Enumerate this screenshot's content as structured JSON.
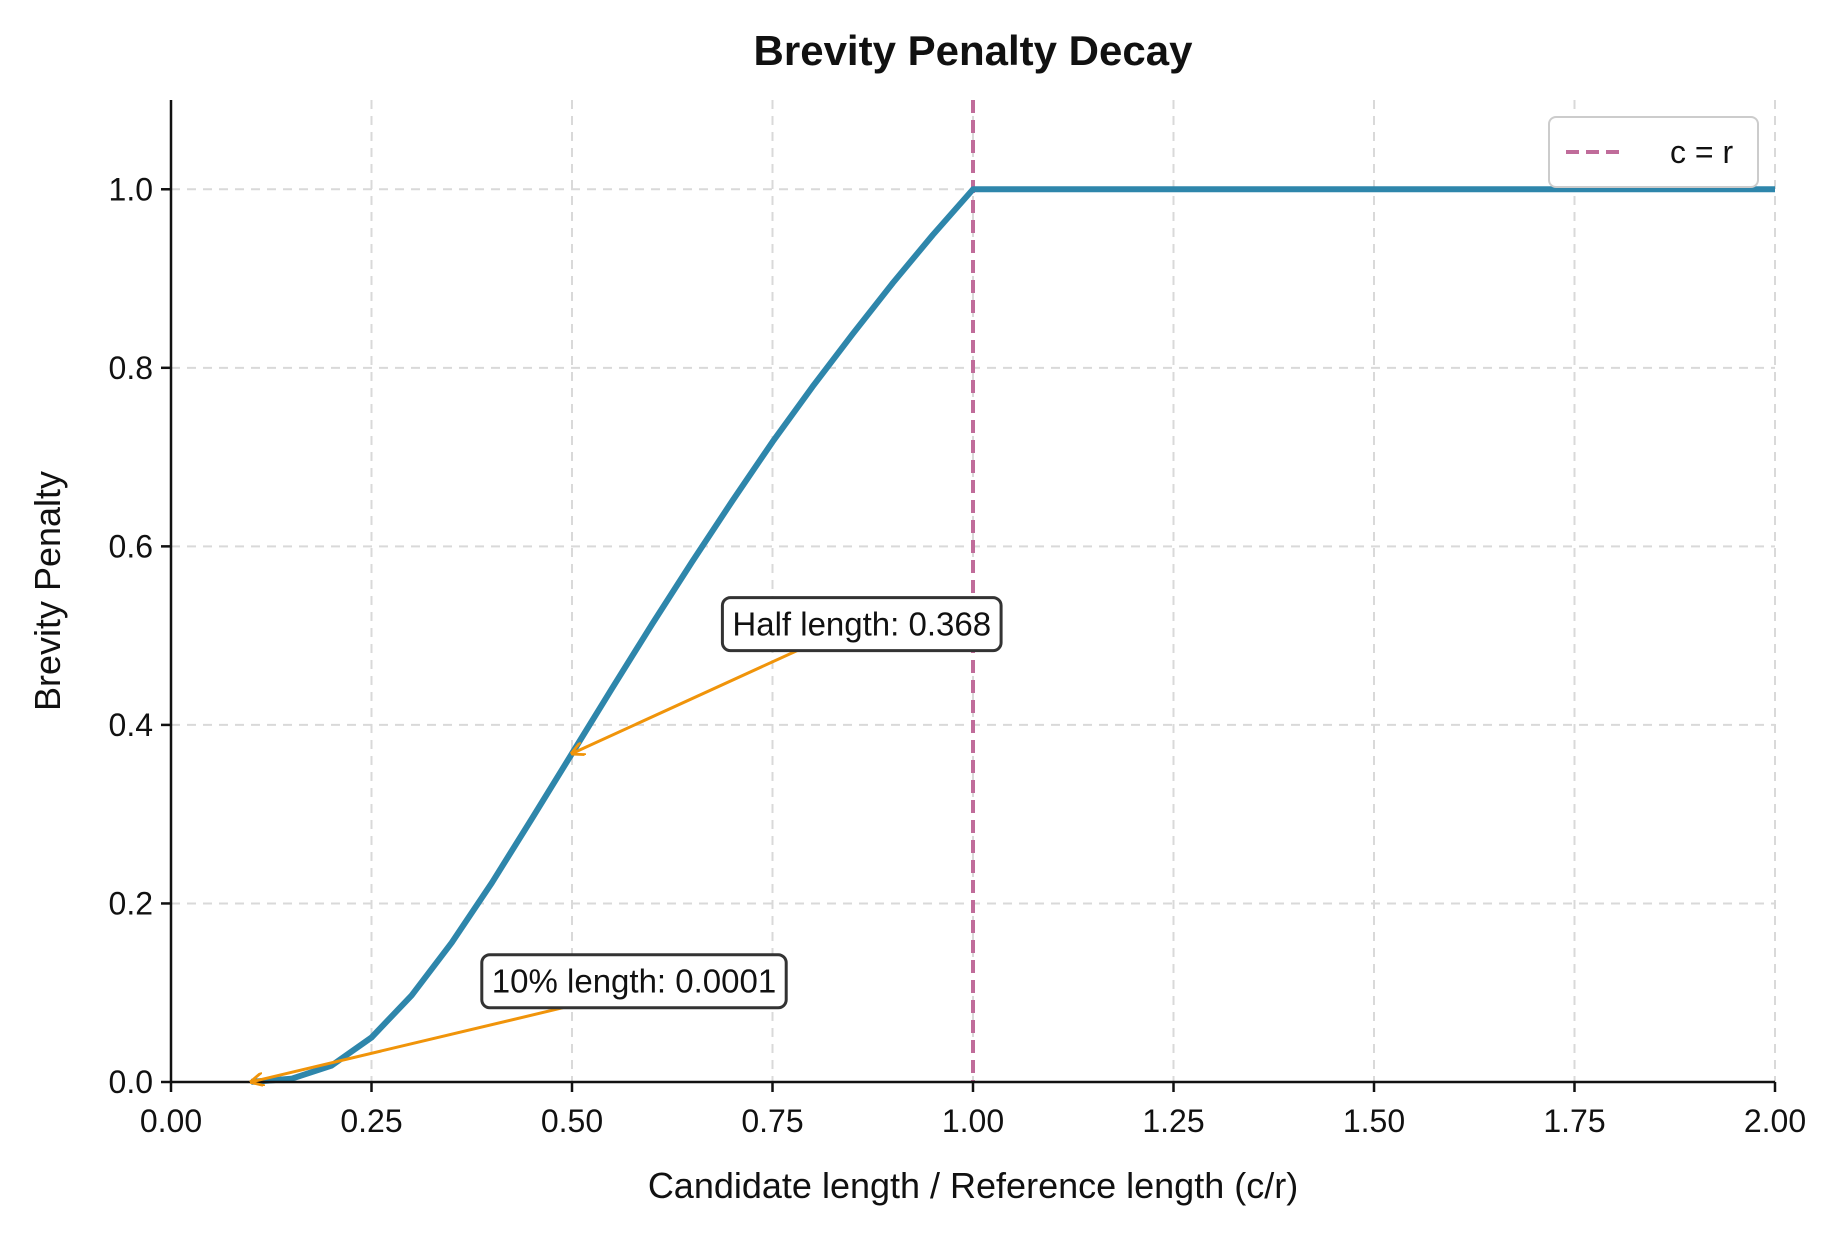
{
  "chart_data": {
    "type": "line",
    "title": "Brevity Penalty Decay",
    "xlabel": "Candidate length / Reference length (c/r)",
    "ylabel": "Brevity Penalty",
    "xlim": [
      0,
      2
    ],
    "ylim": [
      0,
      1.1
    ],
    "xticks": [
      0,
      0.25,
      0.5,
      0.75,
      1.0,
      1.25,
      1.5,
      1.75,
      2.0
    ],
    "xtick_labels": [
      "0.00",
      "0.25",
      "0.50",
      "0.75",
      "1.00",
      "1.25",
      "1.50",
      "1.75",
      "2.00"
    ],
    "yticks": [
      0,
      0.2,
      0.4,
      0.6,
      0.8,
      1.0
    ],
    "ytick_labels": [
      "0.0",
      "0.2",
      "0.4",
      "0.6",
      "0.8",
      "1.0"
    ],
    "grid": true,
    "legend_position": "top-right",
    "series": [
      {
        "color": "#2e86ab",
        "x": [
          0.1,
          0.15,
          0.2,
          0.25,
          0.3,
          0.35,
          0.4,
          0.45,
          0.5,
          0.55,
          0.6,
          0.65,
          0.7,
          0.75,
          0.8,
          0.85,
          0.9,
          0.95,
          1.0,
          1.25,
          1.5,
          1.75,
          2.0
        ],
        "y": [
          0.0001,
          0.0036,
          0.0183,
          0.0498,
          0.097,
          0.156,
          0.223,
          0.295,
          0.368,
          0.441,
          0.513,
          0.583,
          0.651,
          0.717,
          0.779,
          0.838,
          0.895,
          0.949,
          1.0,
          1.0,
          1.0,
          1.0,
          1.0
        ]
      }
    ],
    "reference_line": {
      "name": "c = r",
      "x": 1.0,
      "color": "#c06c9a",
      "style": "dashed"
    },
    "annotations": [
      {
        "text": "Half length: 0.368",
        "x": 0.5,
        "y": 0.368,
        "text_x": 0.7,
        "text_y": 0.5,
        "arrow_color": "#f0940a"
      },
      {
        "text": "10% length: 0.0001",
        "x": 0.1,
        "y": 0.0001,
        "text_x": 0.4,
        "text_y": 0.1,
        "arrow_color": "#f0940a"
      }
    ]
  }
}
